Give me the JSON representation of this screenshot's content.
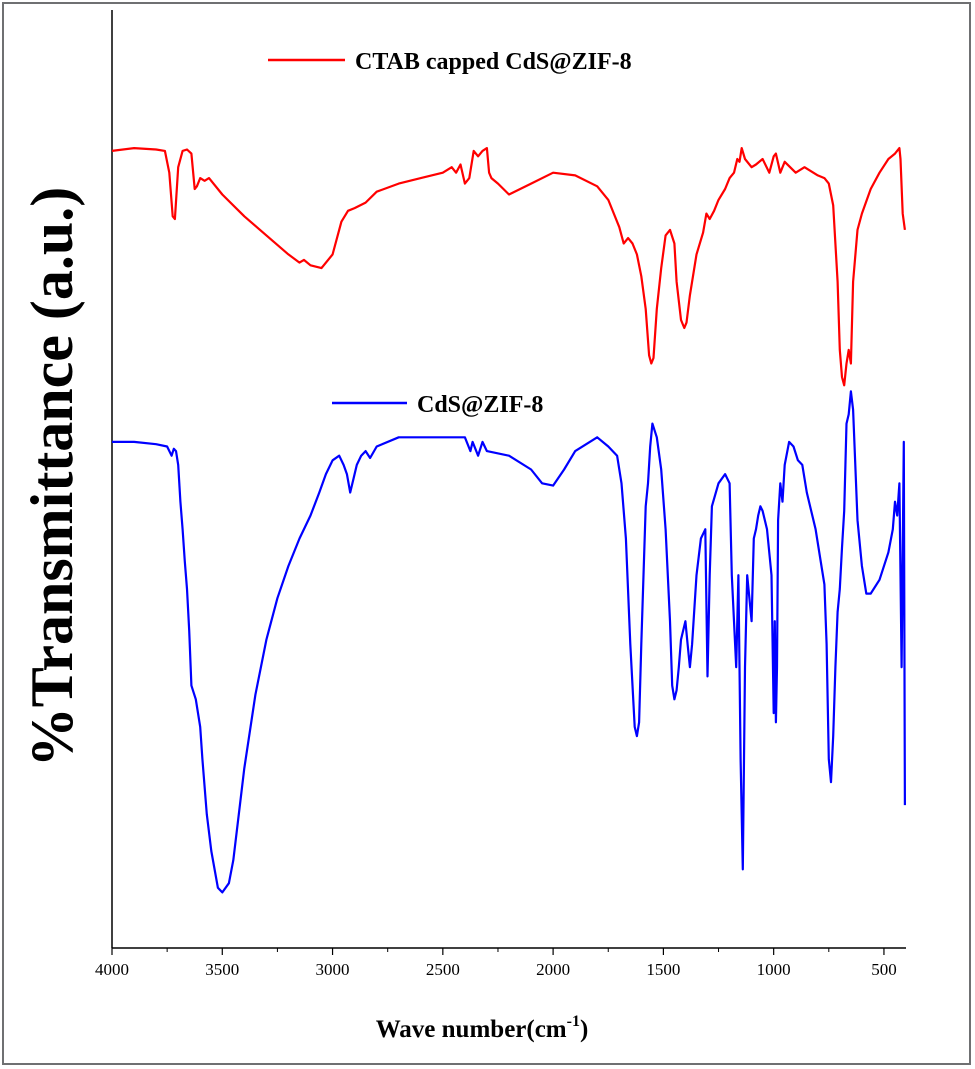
{
  "chart_data": {
    "type": "line",
    "title": "",
    "xlabel": "Wave number(cm",
    "xlabel_sup": "-1",
    "xlabel_close": ")",
    "ylabel": "%Transmittance (a.u.)",
    "xlim": [
      4000,
      400
    ],
    "x_reversed": true,
    "xticks": [
      4000,
      3500,
      3000,
      2500,
      2000,
      1500,
      1000,
      500
    ],
    "yticks": [],
    "grid": false,
    "legend_position": "inline-above-each-curve",
    "series": [
      {
        "name": "CTAB capped CdS@ZIF-8",
        "color": "#ff0000",
        "x": [
          4000,
          3900,
          3800,
          3760,
          3740,
          3725,
          3715,
          3700,
          3680,
          3660,
          3640,
          3625,
          3615,
          3600,
          3580,
          3560,
          3500,
          3400,
          3300,
          3200,
          3150,
          3130,
          3100,
          3050,
          3000,
          2960,
          2930,
          2900,
          2850,
          2800,
          2700,
          2600,
          2500,
          2460,
          2440,
          2420,
          2400,
          2380,
          2360,
          2340,
          2320,
          2300,
          2290,
          2280,
          2250,
          2200,
          2100,
          2000,
          1900,
          1800,
          1750,
          1700,
          1680,
          1660,
          1640,
          1620,
          1600,
          1580,
          1565,
          1555,
          1545,
          1530,
          1510,
          1490,
          1470,
          1450,
          1440,
          1420,
          1405,
          1395,
          1380,
          1350,
          1320,
          1305,
          1290,
          1270,
          1250,
          1220,
          1200,
          1180,
          1165,
          1155,
          1145,
          1130,
          1100,
          1080,
          1050,
          1020,
          1000,
          990,
          970,
          950,
          900,
          860,
          800,
          770,
          750,
          730,
          710,
          700,
          690,
          680,
          670,
          660,
          650,
          640,
          620,
          600,
          560,
          520,
          480,
          450,
          430,
          425,
          415,
          405
        ],
        "y": [
          0.98,
          0.99,
          0.985,
          0.98,
          0.9,
          0.74,
          0.73,
          0.92,
          0.98,
          0.985,
          0.97,
          0.84,
          0.85,
          0.88,
          0.87,
          0.88,
          0.82,
          0.74,
          0.67,
          0.6,
          0.57,
          0.58,
          0.56,
          0.55,
          0.6,
          0.72,
          0.76,
          0.77,
          0.79,
          0.83,
          0.86,
          0.88,
          0.9,
          0.92,
          0.9,
          0.93,
          0.86,
          0.88,
          0.98,
          0.96,
          0.98,
          0.99,
          0.9,
          0.88,
          0.86,
          0.82,
          0.86,
          0.9,
          0.89,
          0.85,
          0.8,
          0.7,
          0.64,
          0.66,
          0.64,
          0.6,
          0.52,
          0.4,
          0.23,
          0.2,
          0.22,
          0.4,
          0.55,
          0.67,
          0.69,
          0.64,
          0.5,
          0.36,
          0.33,
          0.35,
          0.45,
          0.6,
          0.68,
          0.75,
          0.73,
          0.76,
          0.8,
          0.84,
          0.88,
          0.9,
          0.95,
          0.94,
          0.99,
          0.95,
          0.92,
          0.93,
          0.95,
          0.9,
          0.96,
          0.97,
          0.9,
          0.94,
          0.9,
          0.92,
          0.89,
          0.88,
          0.86,
          0.78,
          0.5,
          0.25,
          0.15,
          0.12,
          0.2,
          0.25,
          0.2,
          0.5,
          0.69,
          0.75,
          0.84,
          0.9,
          0.95,
          0.97,
          0.99,
          0.95,
          0.75,
          0.69
        ]
      },
      {
        "name": "CdS@ZIF-8",
        "color": "#0000ff",
        "x": [
          4000,
          3900,
          3800,
          3750,
          3730,
          3720,
          3710,
          3700,
          3690,
          3680,
          3670,
          3660,
          3650,
          3640,
          3620,
          3600,
          3590,
          3570,
          3550,
          3520,
          3500,
          3470,
          3450,
          3420,
          3400,
          3350,
          3300,
          3250,
          3200,
          3150,
          3100,
          3060,
          3030,
          3000,
          2970,
          2950,
          2935,
          2920,
          2905,
          2890,
          2870,
          2850,
          2830,
          2800,
          2700,
          2600,
          2500,
          2400,
          2375,
          2370,
          2365,
          2340,
          2320,
          2300,
          2200,
          2100,
          2050,
          2000,
          1950,
          1900,
          1800,
          1750,
          1710,
          1690,
          1670,
          1650,
          1630,
          1620,
          1610,
          1600,
          1590,
          1580,
          1570,
          1560,
          1550,
          1530,
          1510,
          1490,
          1470,
          1460,
          1450,
          1440,
          1430,
          1420,
          1400,
          1390,
          1380,
          1370,
          1350,
          1330,
          1310,
          1300,
          1290,
          1280,
          1250,
          1220,
          1200,
          1190,
          1180,
          1170,
          1160,
          1150,
          1140,
          1130,
          1120,
          1110,
          1100,
          1090,
          1080,
          1070,
          1060,
          1050,
          1030,
          1010,
          1000,
          995,
          990,
          985,
          980,
          970,
          960,
          950,
          930,
          910,
          890,
          870,
          850,
          830,
          810,
          790,
          770,
          760,
          750,
          740,
          730,
          720,
          710,
          700,
          690,
          680,
          670,
          660,
          650,
          640,
          620,
          600,
          580,
          560,
          520,
          480,
          460,
          450,
          440,
          430,
          420,
          410,
          405
        ],
        "y": [
          0.99,
          0.99,
          0.985,
          0.98,
          0.96,
          0.975,
          0.97,
          0.94,
          0.86,
          0.8,
          0.73,
          0.67,
          0.58,
          0.46,
          0.43,
          0.37,
          0.3,
          0.18,
          0.1,
          0.02,
          0.01,
          0.03,
          0.08,
          0.2,
          0.28,
          0.44,
          0.56,
          0.65,
          0.72,
          0.78,
          0.83,
          0.88,
          0.92,
          0.95,
          0.96,
          0.94,
          0.92,
          0.88,
          0.91,
          0.94,
          0.96,
          0.97,
          0.955,
          0.98,
          1.0,
          1.0,
          1.0,
          1.0,
          0.97,
          0.98,
          0.99,
          0.96,
          0.99,
          0.97,
          0.96,
          0.93,
          0.9,
          0.895,
          0.93,
          0.97,
          1.0,
          0.98,
          0.96,
          0.9,
          0.78,
          0.55,
          0.37,
          0.35,
          0.38,
          0.55,
          0.7,
          0.85,
          0.9,
          0.98,
          1.03,
          1.0,
          0.93,
          0.8,
          0.6,
          0.46,
          0.43,
          0.45,
          0.5,
          0.56,
          0.6,
          0.55,
          0.5,
          0.55,
          0.7,
          0.78,
          0.8,
          0.48,
          0.7,
          0.85,
          0.9,
          0.92,
          0.9,
          0.7,
          0.6,
          0.5,
          0.7,
          0.3,
          0.06,
          0.5,
          0.7,
          0.65,
          0.6,
          0.78,
          0.8,
          0.83,
          0.85,
          0.84,
          0.8,
          0.7,
          0.4,
          0.6,
          0.38,
          0.5,
          0.82,
          0.9,
          0.86,
          0.94,
          0.99,
          0.98,
          0.95,
          0.94,
          0.88,
          0.84,
          0.8,
          0.74,
          0.68,
          0.55,
          0.3,
          0.25,
          0.35,
          0.5,
          0.62,
          0.67,
          0.76,
          0.84,
          1.03,
          1.05,
          1.1,
          1.06,
          0.82,
          0.72,
          0.66,
          0.66,
          0.69,
          0.75,
          0.8,
          0.86,
          0.83,
          0.9,
          0.5,
          0.99,
          0.2
        ]
      }
    ]
  }
}
